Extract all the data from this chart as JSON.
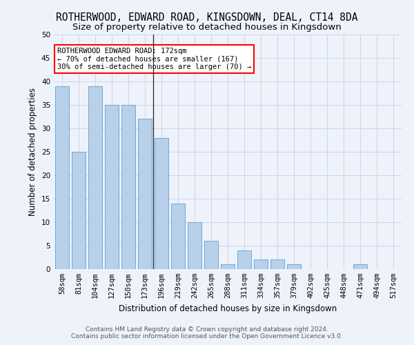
{
  "title": "ROTHERWOOD, EDWARD ROAD, KINGSDOWN, DEAL, CT14 8DA",
  "subtitle": "Size of property relative to detached houses in Kingsdown",
  "xlabel": "Distribution of detached houses by size in Kingsdown",
  "ylabel": "Number of detached properties",
  "categories": [
    "58sqm",
    "81sqm",
    "104sqm",
    "127sqm",
    "150sqm",
    "173sqm",
    "196sqm",
    "219sqm",
    "242sqm",
    "265sqm",
    "288sqm",
    "311sqm",
    "334sqm",
    "357sqm",
    "379sqm",
    "402sqm",
    "425sqm",
    "448sqm",
    "471sqm",
    "494sqm",
    "517sqm"
  ],
  "values": [
    39,
    25,
    39,
    35,
    35,
    32,
    28,
    14,
    10,
    6,
    1,
    4,
    2,
    2,
    1,
    0,
    0,
    0,
    1,
    0,
    0
  ],
  "bar_color": "#b8d0ea",
  "bar_edge_color": "#6aaad4",
  "vline_index": 5.5,
  "ylim": [
    0,
    50
  ],
  "yticks": [
    0,
    5,
    10,
    15,
    20,
    25,
    30,
    35,
    40,
    45,
    50
  ],
  "annotation_text": "ROTHERWOOD EDWARD ROAD: 172sqm\n← 70% of detached houses are smaller (167)\n30% of semi-detached houses are larger (70) →",
  "footer_line1": "Contains HM Land Registry data © Crown copyright and database right 2024.",
  "footer_line2": "Contains public sector information licensed under the Open Government Licence v3.0.",
  "bg_color": "#eef2fb",
  "grid_color": "#c8d0e0",
  "title_fontsize": 10.5,
  "subtitle_fontsize": 9.5,
  "xlabel_fontsize": 8.5,
  "ylabel_fontsize": 8.5,
  "tick_fontsize": 7.5,
  "annot_fontsize": 7.5,
  "footer_fontsize": 6.5
}
